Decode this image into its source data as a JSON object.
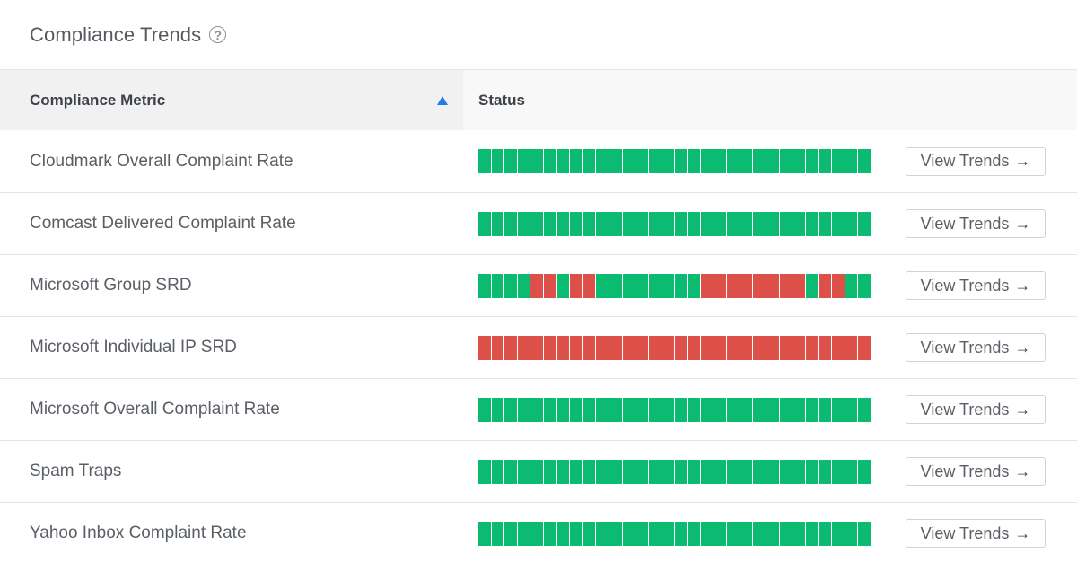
{
  "header": {
    "title": "Compliance Trends",
    "help_icon": "question-circle-icon"
  },
  "table": {
    "columns": {
      "metric": "Compliance Metric",
      "status": "Status"
    },
    "sort": {
      "column": "metric",
      "direction": "ascending",
      "icon": "sort-up-icon",
      "color": "#1e7ee8"
    },
    "button_label": "View Trends",
    "button_icon": "arrow-right-icon",
    "colors": {
      "ok": "#0cbb72",
      "bad": "#dd5049"
    },
    "rows": [
      {
        "metric": "Cloudmark Overall Complaint Rate",
        "status": "GGGGGGGGGGGGGGGGGGGGGGGGGGGGGG"
      },
      {
        "metric": "Comcast Delivered Complaint Rate",
        "status": "GGGGGGGGGGGGGGGGGGGGGGGGGGGGGG"
      },
      {
        "metric": "Microsoft Group SRD",
        "status": "GGGGRRGRRGGGGGGGGRRRRRRRRGRRGG"
      },
      {
        "metric": "Microsoft Individual IP SRD",
        "status": "RRRRRRRRRRRRRRRRRRRRRRRRRRRRRR"
      },
      {
        "metric": "Microsoft Overall Complaint Rate",
        "status": "GGGGGGGGGGGGGGGGGGGGGGGGGGGGGG"
      },
      {
        "metric": "Spam Traps",
        "status": "GGGGGGGGGGGGGGGGGGGGGGGGGGGGGG"
      },
      {
        "metric": "Yahoo Inbox Complaint Rate",
        "status": "GGGGGGGGGGGGGGGGGGGGGGGGGGGGGG"
      }
    ]
  }
}
